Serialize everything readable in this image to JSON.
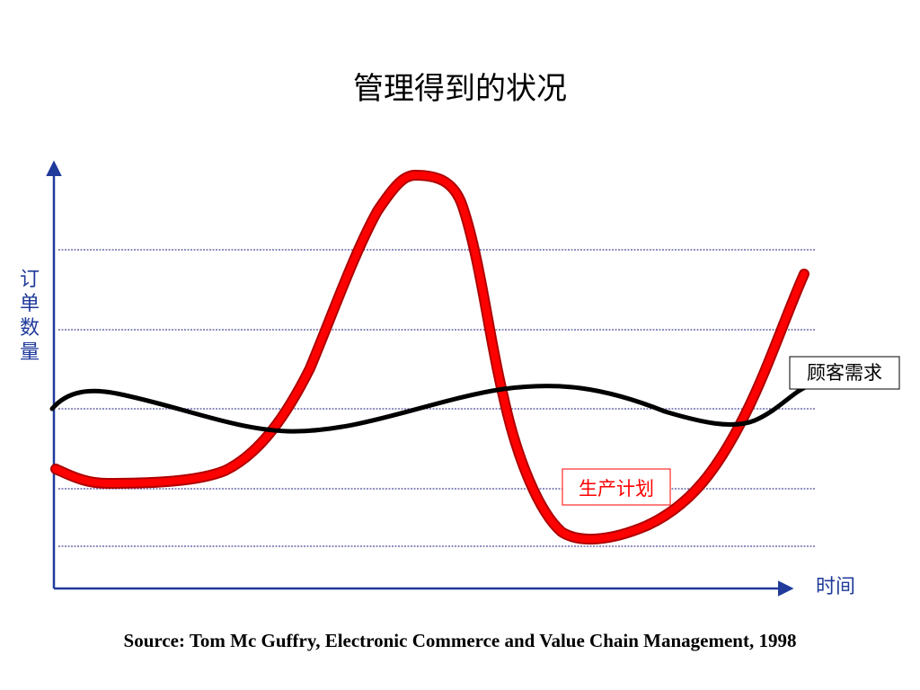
{
  "header": {
    "title": "管理得到的状况"
  },
  "axes": {
    "y_label": "订单数量",
    "x_label": "时间"
  },
  "curves": {
    "demand": "顾客需求",
    "production": "生产计划"
  },
  "footer": {
    "source": "Source: Tom Mc Guffry, Electronic Commerce and Value Chain Management, 1998"
  }
}
